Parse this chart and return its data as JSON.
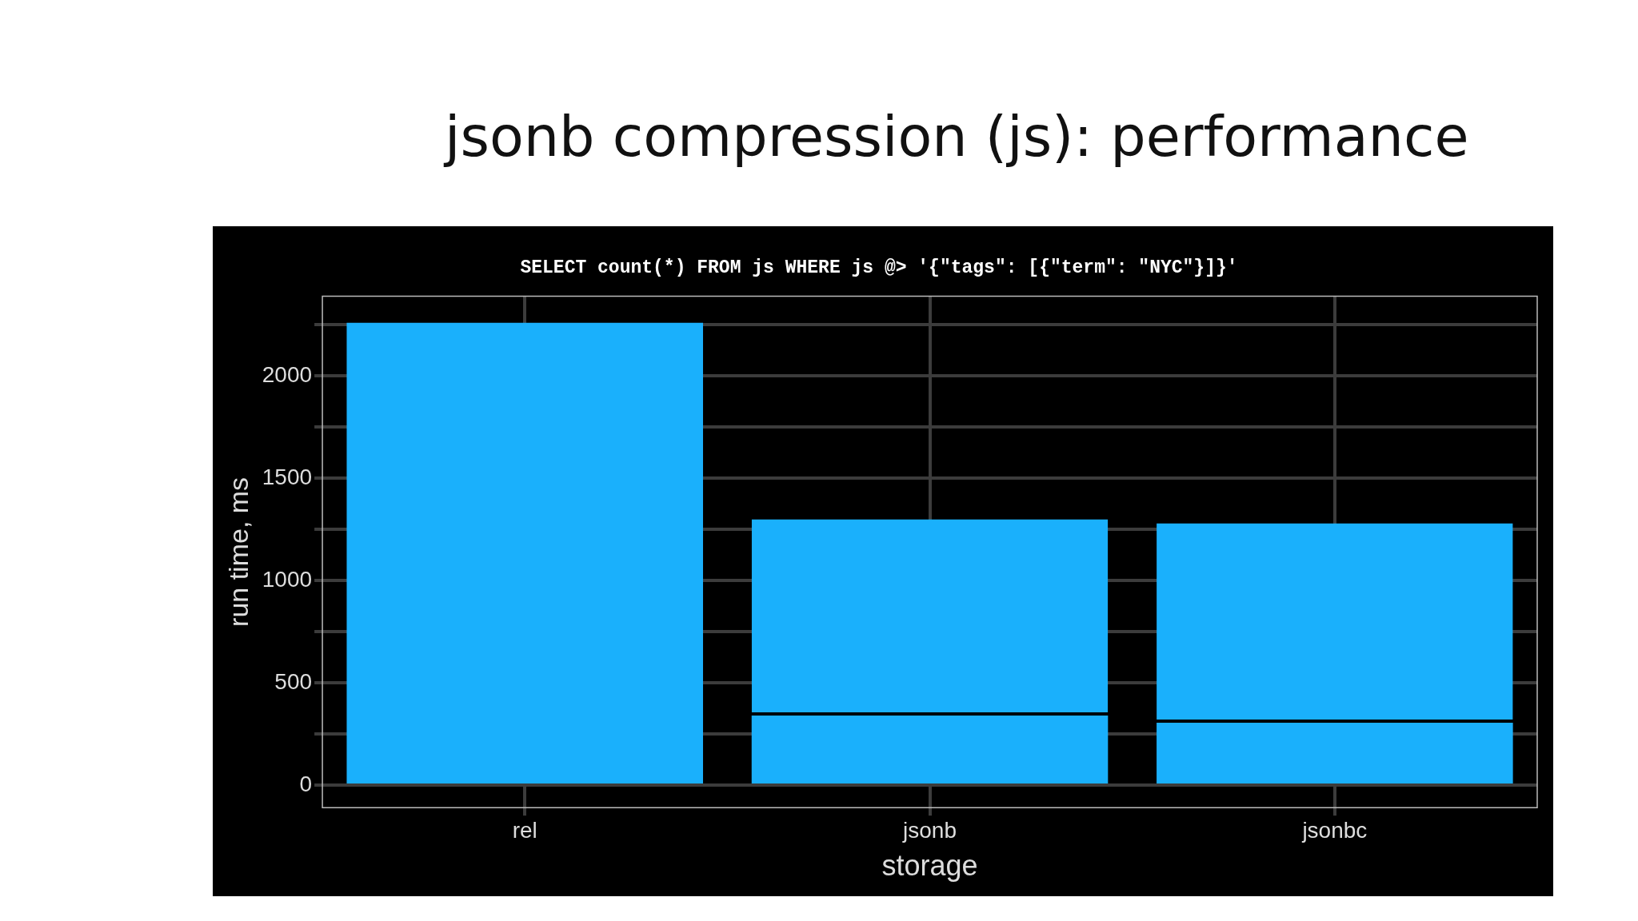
{
  "chart_data": {
    "type": "bar",
    "title": "jsonb compression (js): performance",
    "subtitle": "SELECT count(*) FROM js WHERE js @> '{\"tags\": [{\"term\": \"NYC\"}]}'",
    "xlabel": "storage",
    "ylabel": "run time, ms",
    "categories": [
      "rel",
      "jsonb",
      "jsonbc"
    ],
    "stacked": true,
    "series": [
      {
        "color": "#1ab0fc",
        "values": [
          2260,
          340,
          305
        ]
      },
      {
        "color": "#1ab0fc",
        "values": [
          null,
          960,
          975
        ]
      }
    ],
    "ylim": [
      -110,
      2390
    ],
    "yticks": [
      0,
      {
        "value": 250,
        "label": null
      },
      500,
      {
        "value": 750,
        "label": null
      },
      1000,
      {
        "value": 1250,
        "label": null
      },
      1500,
      {
        "value": 1750,
        "label": null
      },
      2000,
      {
        "value": 2250,
        "label": null
      }
    ],
    "grid": true
  }
}
